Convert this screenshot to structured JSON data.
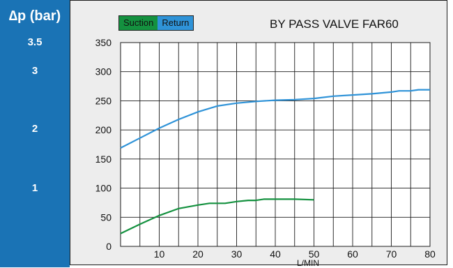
{
  "left_band": {
    "title": "∆p  (bar)",
    "labels": [
      "3.5",
      "3",
      "2",
      "1"
    ]
  },
  "legend": {
    "suction_label": "Suction",
    "return_label": "Return"
  },
  "colors": {
    "suction": "#14913f",
    "return": "#2f93d8",
    "band": "#1a73b5"
  },
  "chart_data": {
    "type": "line",
    "title": "BY PASS VALVE FAR60",
    "xlabel": "L/MIN",
    "ylabel": "",
    "xlim": [
      0,
      80
    ],
    "ylim": [
      0,
      350
    ],
    "x_ticks": [
      10,
      20,
      30,
      40,
      50,
      60,
      70,
      80
    ],
    "y_ticks": [
      0,
      50,
      100,
      150,
      200,
      250,
      300,
      350
    ],
    "grid": true,
    "legend_position": "top-left",
    "series": [
      {
        "name": "Suction",
        "x": [
          0,
          5,
          10,
          15,
          20,
          23,
          27,
          30,
          33,
          35,
          37,
          40,
          45,
          50
        ],
        "y": [
          22,
          38,
          53,
          65,
          71,
          74,
          74,
          77,
          79,
          79,
          81,
          81,
          81,
          80
        ]
      },
      {
        "name": "Return",
        "x": [
          0,
          5,
          10,
          15,
          20,
          25,
          30,
          35,
          40,
          45,
          50,
          55,
          60,
          65,
          70,
          72,
          75,
          77,
          80
        ],
        "y": [
          169,
          186,
          203,
          218,
          231,
          241,
          246,
          249,
          251,
          252,
          254,
          258,
          260,
          262,
          265,
          267,
          267,
          269,
          269
        ]
      }
    ]
  }
}
